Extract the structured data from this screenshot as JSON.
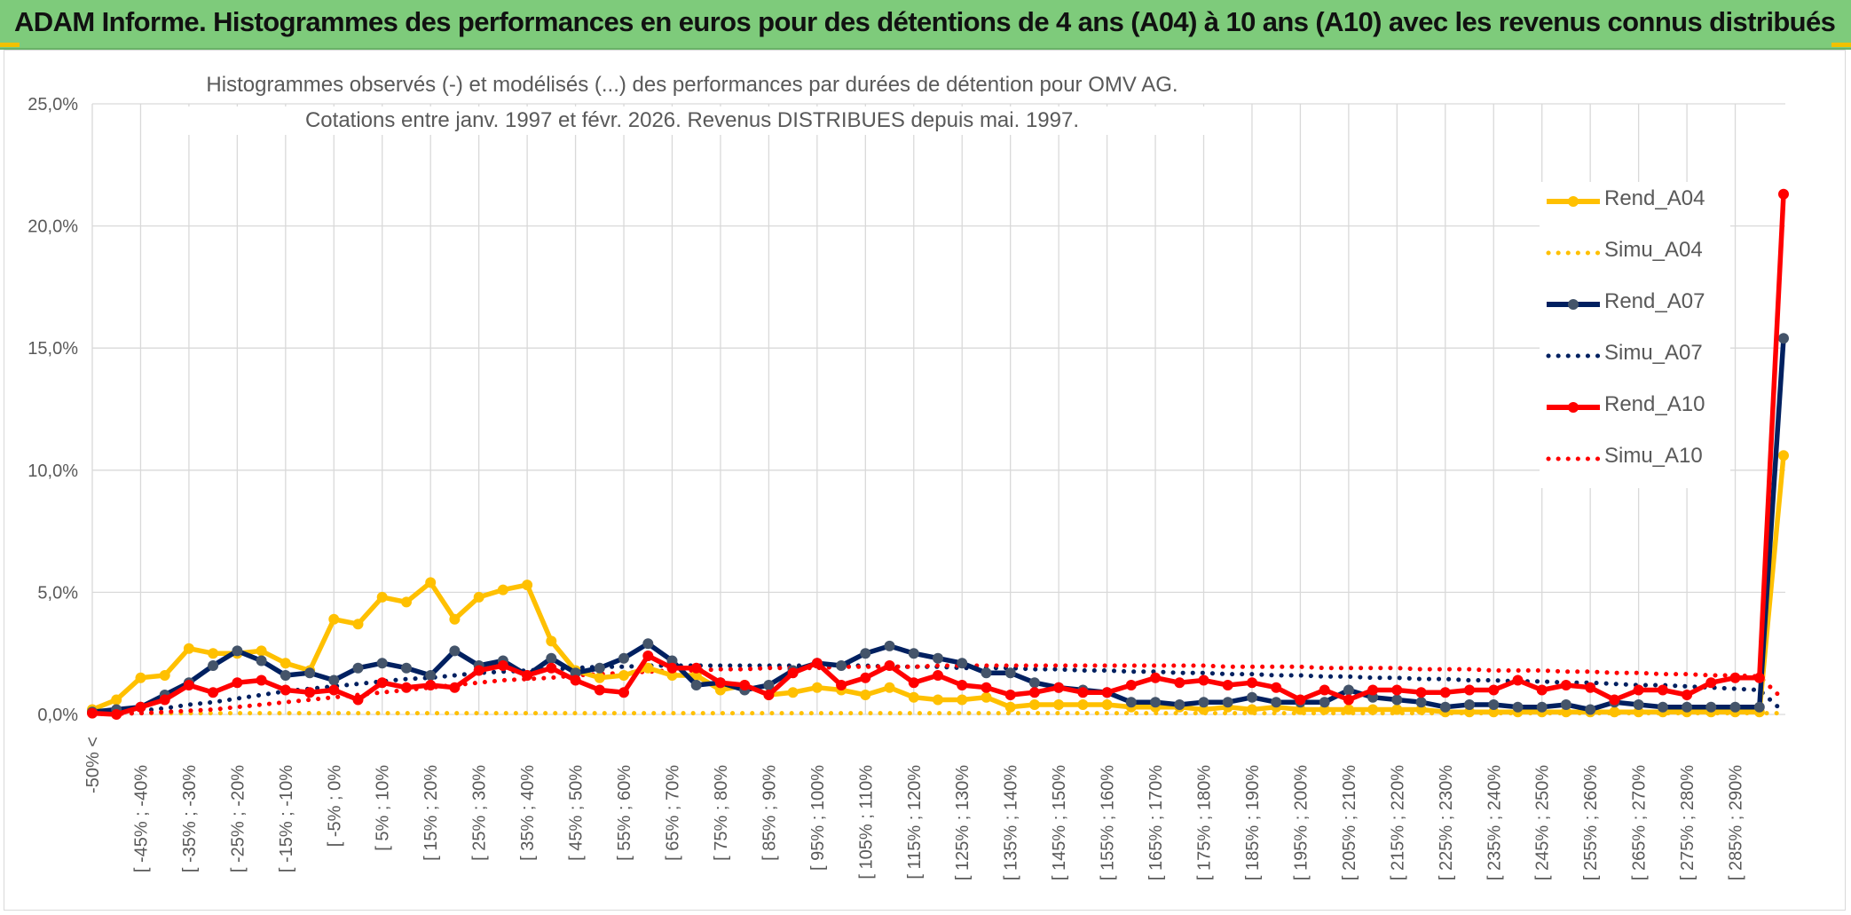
{
  "header": {
    "title": "ADAM Informe. Histogrammes des performances en euros pour des détentions de 4 ans (A04) à 10 ans (A10) avec les revenus connus distribués"
  },
  "colors": {
    "banner": "#7ecb7b",
    "a04": "#ffc000",
    "a07": "#002060",
    "a10": "#ff0000",
    "a07_marker": "#44546a",
    "grid": "#d9d9d9",
    "axis_text": "#595959"
  },
  "chart_data": {
    "type": "line",
    "title": "Histogrammes observés (-) et modélisés (...) des performances par durées de détention pour OMV AG.",
    "subtitle": "Cotations entre janv. 1997 et févr. 2026. Revenus DISTRIBUES depuis mai. 1997.",
    "xlabel": "",
    "ylabel": "",
    "ylim": [
      0,
      25
    ],
    "yticks": [
      "0,0%",
      "5,0%",
      "10,0%",
      "15,0%",
      "20,0%",
      "25,0%"
    ],
    "x_tick_labels": [
      "-50% <",
      "[ -45% ; -40%",
      "[ -35% ; -30%",
      "[ -25% ; -20%",
      "[ -15% ; -10%",
      "[ -5% ; 0%",
      "[ 5% ; 10%",
      "[ 15% ; 20%",
      "[ 25% ; 30%",
      "[ 35% ; 40%",
      "[ 45% ; 50%",
      "[ 55% ; 60%",
      "[ 65% ; 70%",
      "[ 75% ; 80%",
      "[ 85% ; 90%",
      "[ 95% ; 100%",
      "[ 105% ; 110%",
      "[ 115% ; 120%",
      "[ 125% ; 130%",
      "[ 135% ; 140%",
      "[ 145% ; 150%",
      "[ 155% ; 160%",
      "[ 165% ; 170%",
      "[ 175% ; 180%",
      "[ 185% ; 190%",
      "[ 195% ; 200%",
      "[ 205% ; 210%",
      "[ 215% ; 220%",
      "[ 225% ; 230%",
      "[ 235% ; 240%",
      "[ 245% ; 250%",
      "[ 255% ; 260%",
      "[ 265% ; 270%",
      "[ 275% ; 280%",
      "[ 285% ; 290%"
    ],
    "n_points": 71,
    "series": [
      {
        "name": "Rend_A04",
        "style": "solid",
        "color": "#ffc000",
        "marker": true,
        "values": [
          0.2,
          0.6,
          1.5,
          1.6,
          2.7,
          2.5,
          2.5,
          2.6,
          2.1,
          1.8,
          3.9,
          3.7,
          4.8,
          4.6,
          5.4,
          3.9,
          4.8,
          5.1,
          5.3,
          3.0,
          1.8,
          1.5,
          1.6,
          1.9,
          1.6,
          1.6,
          1.0,
          1.2,
          0.8,
          0.9,
          1.1,
          1.0,
          0.8,
          1.1,
          0.7,
          0.6,
          0.6,
          0.7,
          0.3,
          0.4,
          0.4,
          0.4,
          0.4,
          0.3,
          0.3,
          0.3,
          0.2,
          0.3,
          0.2,
          0.3,
          0.2,
          0.2,
          0.2,
          0.2,
          0.2,
          0.2,
          0.1,
          0.1,
          0.1,
          0.1,
          0.1,
          0.1,
          0.1,
          0.1,
          0.1,
          0.1,
          0.1,
          0.1,
          0.1,
          0.1,
          10.6
        ]
      },
      {
        "name": "Simu_A04",
        "style": "dotted",
        "color": "#ffc000",
        "marker": false,
        "values": [
          0.05,
          0.05,
          0.05,
          0.05,
          0.05,
          0.05,
          0.05,
          0.05,
          0.05,
          0.05,
          0.05,
          0.05,
          0.05,
          0.05,
          0.05,
          0.05,
          0.05,
          0.05,
          0.05,
          0.05,
          0.05,
          0.05,
          0.05,
          0.05,
          0.05,
          0.05,
          0.05,
          0.05,
          0.05,
          0.05,
          0.05,
          0.05,
          0.05,
          0.05,
          0.05,
          0.05,
          0.05,
          0.05,
          0.05,
          0.05,
          0.05,
          0.05,
          0.05,
          0.05,
          0.05,
          0.05,
          0.05,
          0.05,
          0.05,
          0.05,
          0.05,
          0.05,
          0.05,
          0.05,
          0.05,
          0.05,
          0.05,
          0.05,
          0.05,
          0.05,
          0.05,
          0.05,
          0.05,
          0.05,
          0.05,
          0.05,
          0.05,
          0.05,
          0.05,
          0.05,
          0.05
        ]
      },
      {
        "name": "Rend_A07",
        "style": "solid",
        "color": "#002060",
        "marker": true,
        "values": [
          0.1,
          0.2,
          0.3,
          0.8,
          1.3,
          2.0,
          2.6,
          2.2,
          1.6,
          1.7,
          1.4,
          1.9,
          2.1,
          1.9,
          1.6,
          2.6,
          2.0,
          2.2,
          1.6,
          2.3,
          1.7,
          1.9,
          2.3,
          2.9,
          2.2,
          1.2,
          1.3,
          1.0,
          1.2,
          1.8,
          2.1,
          2.0,
          2.5,
          2.8,
          2.5,
          2.3,
          2.1,
          1.7,
          1.7,
          1.3,
          1.1,
          1.0,
          0.9,
          0.5,
          0.5,
          0.4,
          0.5,
          0.5,
          0.7,
          0.5,
          0.5,
          0.5,
          1.0,
          0.7,
          0.6,
          0.5,
          0.3,
          0.4,
          0.4,
          0.3,
          0.3,
          0.4,
          0.2,
          0.5,
          0.4,
          0.3,
          0.3,
          0.3,
          0.3,
          0.3,
          15.4
        ]
      },
      {
        "name": "Simu_A07",
        "style": "dotted",
        "color": "#002060",
        "marker": false,
        "values": [
          0.05,
          0.1,
          0.15,
          0.25,
          0.4,
          0.5,
          0.65,
          0.8,
          0.95,
          1.05,
          1.15,
          1.25,
          1.35,
          1.45,
          1.5,
          1.6,
          1.7,
          1.75,
          1.8,
          1.85,
          1.9,
          1.95,
          1.95,
          2.0,
          2.0,
          2.0,
          2.0,
          2.0,
          2.0,
          2.0,
          2.0,
          2.0,
          2.0,
          1.95,
          1.95,
          1.95,
          1.9,
          1.9,
          1.9,
          1.85,
          1.85,
          1.8,
          1.8,
          1.75,
          1.75,
          1.7,
          1.7,
          1.65,
          1.65,
          1.6,
          1.6,
          1.55,
          1.55,
          1.5,
          1.5,
          1.45,
          1.45,
          1.4,
          1.4,
          1.35,
          1.35,
          1.3,
          1.3,
          1.25,
          1.2,
          1.2,
          1.15,
          1.1,
          1.05,
          1.0,
          0.1
        ]
      },
      {
        "name": "Rend_A10",
        "style": "solid",
        "color": "#ff0000",
        "marker": true,
        "values": [
          0.05,
          0.0,
          0.3,
          0.6,
          1.2,
          0.9,
          1.3,
          1.4,
          1.0,
          0.9,
          1.0,
          0.6,
          1.3,
          1.1,
          1.2,
          1.1,
          1.8,
          2.0,
          1.6,
          1.9,
          1.4,
          1.0,
          0.9,
          2.4,
          1.9,
          1.9,
          1.3,
          1.2,
          0.8,
          1.7,
          2.1,
          1.2,
          1.5,
          2.0,
          1.3,
          1.6,
          1.2,
          1.1,
          0.8,
          0.9,
          1.1,
          0.9,
          0.9,
          1.2,
          1.5,
          1.3,
          1.4,
          1.2,
          1.3,
          1.1,
          0.6,
          1.0,
          0.6,
          1.0,
          1.0,
          0.9,
          0.9,
          1.0,
          1.0,
          1.4,
          1.0,
          1.2,
          1.1,
          0.6,
          1.0,
          1.0,
          0.8,
          1.3,
          1.5,
          1.5,
          21.3
        ]
      },
      {
        "name": "Simu_A10",
        "style": "dotted",
        "color": "#ff0000",
        "marker": false,
        "values": [
          0.01,
          0.03,
          0.05,
          0.1,
          0.15,
          0.2,
          0.3,
          0.4,
          0.5,
          0.6,
          0.7,
          0.8,
          0.9,
          1.0,
          1.1,
          1.2,
          1.3,
          1.4,
          1.45,
          1.5,
          1.6,
          1.65,
          1.7,
          1.75,
          1.8,
          1.8,
          1.85,
          1.85,
          1.9,
          1.9,
          1.9,
          1.95,
          1.95,
          1.95,
          1.95,
          2.0,
          2.0,
          2.0,
          2.0,
          2.0,
          2.0,
          2.0,
          2.0,
          2.0,
          2.0,
          2.0,
          2.0,
          1.95,
          1.95,
          1.95,
          1.95,
          1.9,
          1.9,
          1.9,
          1.9,
          1.85,
          1.85,
          1.85,
          1.8,
          1.8,
          1.8,
          1.75,
          1.75,
          1.7,
          1.7,
          1.65,
          1.65,
          1.6,
          1.6,
          1.55,
          0.6
        ]
      }
    ],
    "legend_position": "right"
  }
}
